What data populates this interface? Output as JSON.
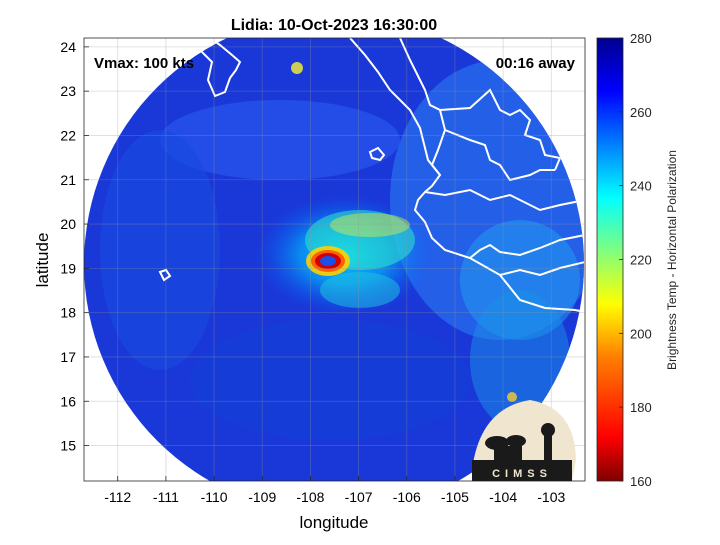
{
  "title": "Lidia: 10-Oct-2023 16:30:00",
  "vmax_label": "Vmax: 100 kts",
  "away_label": "00:16 away",
  "xlabel": "longitude",
  "ylabel": "latitude",
  "colorbar_label": "Brightness Temp - Horizontal Polarization",
  "logo_text": "CIMSS",
  "x_ticks": [
    "-112",
    "-111",
    "-110",
    "-109",
    "-108",
    "-107",
    "-106",
    "-105",
    "-104",
    "-103"
  ],
  "y_ticks": [
    "15",
    "16",
    "17",
    "18",
    "19",
    "20",
    "21",
    "22",
    "23",
    "24"
  ],
  "colorbar_ticks": [
    "160",
    "180",
    "200",
    "220",
    "240",
    "260",
    "280"
  ],
  "colors": {
    "ocean_bg": "#1a38d8",
    "coastline": "#ffffff",
    "colormap": [
      "#7f0000",
      "#ff0000",
      "#ff7f00",
      "#ffff00",
      "#7fff7f",
      "#00ffff",
      "#007fff",
      "#0000ff",
      "#00008f"
    ]
  },
  "chart_data": {
    "type": "heatmap",
    "title": "Lidia: 10-Oct-2023 16:30:00",
    "xlabel": "longitude",
    "ylabel": "latitude",
    "xlim": [
      -112.7,
      -102.3
    ],
    "ylim": [
      14.2,
      24.2
    ],
    "colorbar": {
      "label": "Brightness Temp - Horizontal Polarization",
      "range": [
        160,
        280
      ],
      "ticks": [
        160,
        180,
        200,
        220,
        240,
        260,
        280
      ]
    },
    "storm_center": {
      "lon": -107.85,
      "lat": 19.1,
      "eye_min_temp": 165
    },
    "annotations": [
      "Vmax: 100 kts",
      "00:16 away"
    ],
    "grid": true
  }
}
